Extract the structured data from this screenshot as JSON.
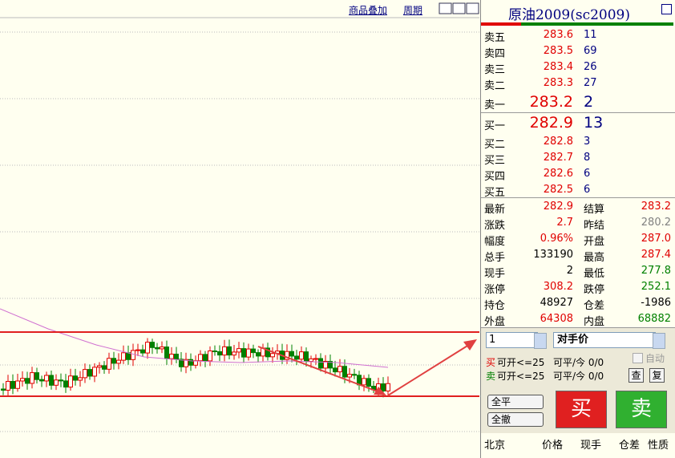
{
  "toolbar": {
    "links": [
      "商品叠加",
      "周期"
    ]
  },
  "quote": {
    "title": "原油2009(sc2009)",
    "asks": [
      {
        "label": "卖五",
        "price": "283.6",
        "volume": "11"
      },
      {
        "label": "卖四",
        "price": "283.5",
        "volume": "69"
      },
      {
        "label": "卖三",
        "price": "283.4",
        "volume": "26"
      },
      {
        "label": "卖二",
        "price": "283.3",
        "volume": "27"
      },
      {
        "label": "卖一",
        "price": "283.2",
        "volume": "2"
      }
    ],
    "bids": [
      {
        "label": "买一",
        "price": "282.9",
        "volume": "13"
      },
      {
        "label": "买二",
        "price": "282.8",
        "volume": "3"
      },
      {
        "label": "买三",
        "price": "282.7",
        "volume": "8"
      },
      {
        "label": "买四",
        "price": "282.6",
        "volume": "6"
      },
      {
        "label": "买五",
        "price": "282.5",
        "volume": "6"
      }
    ],
    "stats": [
      [
        {
          "label": "最新",
          "value": "282.9",
          "color": "#e00000"
        },
        {
          "label": "结算",
          "value": "283.2",
          "color": "#e00000"
        }
      ],
      [
        {
          "label": "涨跌",
          "value": "2.7",
          "color": "#e00000"
        },
        {
          "label": "昨结",
          "value": "280.2",
          "color": "#808080"
        }
      ],
      [
        {
          "label": "幅度",
          "value": "0.96%",
          "color": "#e00000"
        },
        {
          "label": "开盘",
          "value": "287.0",
          "color": "#e00000"
        }
      ],
      [
        {
          "label": "总手",
          "value": "133190",
          "color": "#000000"
        },
        {
          "label": "最高",
          "value": "287.4",
          "color": "#e00000"
        }
      ],
      [
        {
          "label": "现手",
          "value": "2",
          "color": "#000000"
        },
        {
          "label": "最低",
          "value": "277.8",
          "color": "#008000"
        }
      ],
      [
        {
          "label": "涨停",
          "value": "308.2",
          "color": "#e00000"
        },
        {
          "label": "跌停",
          "value": "252.1",
          "color": "#008000"
        }
      ],
      [
        {
          "label": "持仓",
          "value": "48927",
          "color": "#000000"
        },
        {
          "label": "仓差",
          "value": "-1986",
          "color": "#000000"
        }
      ],
      [
        {
          "label": "外盘",
          "value": "64308",
          "color": "#e00000"
        },
        {
          "label": "内盘",
          "value": "68882",
          "color": "#008000"
        }
      ]
    ]
  },
  "order": {
    "quantity": "1",
    "price_type": "对手价",
    "auto": "自动",
    "buy": {
      "side": "买",
      "open": "可开<=25",
      "close": "可平/今 0/0"
    },
    "sell": {
      "side": "卖",
      "open": "可开<=25",
      "close": "可平/今 0/0"
    },
    "query": "查",
    "reset": "复",
    "close_all": "全平",
    "cancel_all": "全撤",
    "buy_button": "买",
    "sell_button": "卖"
  },
  "ticks_table": {
    "headers": [
      "北京",
      "价格",
      "现手",
      "仓差",
      "性质"
    ]
  }
}
